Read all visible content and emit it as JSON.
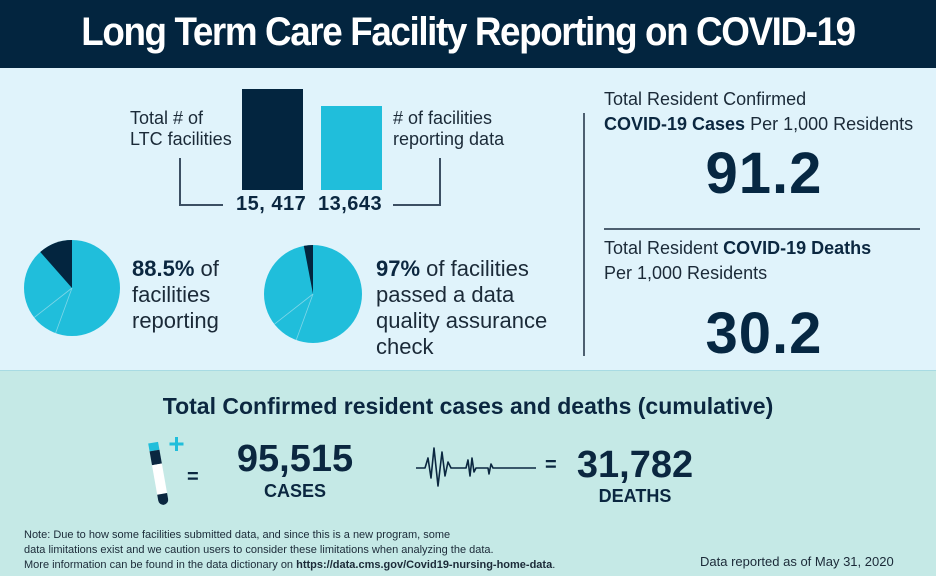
{
  "header": {
    "title": "Long Term Care Facility Reporting on COVID-19"
  },
  "facilities": {
    "total_label_1": "Total # of",
    "total_label_2": "LTC facilities",
    "reporting_label_1": "# of facilities",
    "reporting_label_2": "reporting data",
    "total_value": "15, 417",
    "reporting_value": "13,643",
    "colors": {
      "total": "#03253f",
      "reporting": "#20bedb"
    }
  },
  "pies": [
    {
      "percent_text": "88.5%",
      "rest_text": " of",
      "line2": "facilities",
      "line3": "reporting",
      "line4": "",
      "value": 88.5
    },
    {
      "percent_text": "97%",
      "rest_text": " of facilities",
      "line2": "passed a data",
      "line3": "quality assurance",
      "line4": "check",
      "value": 97
    }
  ],
  "rates": {
    "cases_label_line1": "Total Resident Confirmed",
    "cases_label_bold": "COVID-19 Cases",
    "cases_label_rest": " Per 1,000 Residents",
    "cases_value": "91.2",
    "deaths_label_pre": "Total Resident ",
    "deaths_label_bold": "COVID-19 Deaths",
    "deaths_label_line2": "Per 1,000 Residents",
    "deaths_value": "30.2"
  },
  "cumulative": {
    "title": "Total Confirmed resident cases and deaths (cumulative)",
    "equals": "=",
    "cases_value": "95,515",
    "cases_caption": "CASES",
    "deaths_value": "31,782",
    "deaths_caption": "DEATHS",
    "icons": [
      "test-tube-plus-icon",
      "heartbeat-flatline-icon"
    ]
  },
  "footer": {
    "note_line1": "Note: Due to how some facilities submitted data, and since this is a new program, some",
    "note_line2": "data limitations exist and we caution users to consider these limitations when analyzing the data.",
    "note_line3_pre": "More information can be found in the data dictionary on ",
    "note_link": "https://data.cms.gov/Covid19-nursing-home-data",
    "note_line3_post": ".",
    "date": "Data reported as of May 31, 2020"
  }
}
